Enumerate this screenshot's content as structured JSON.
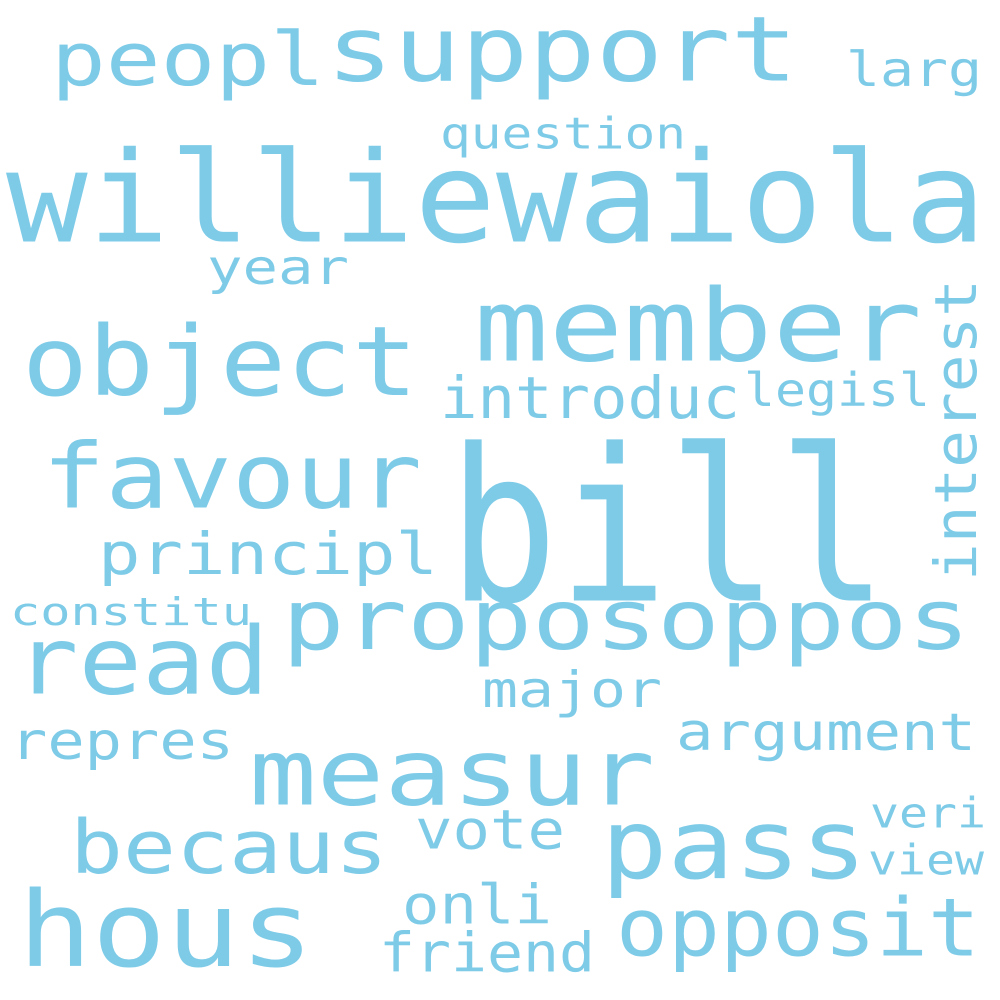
{
  "color": "#7ecbe8",
  "words": [
    "bill",
    "williewaiola",
    "member",
    "object",
    "support",
    "favour",
    "proposoppos",
    "read",
    "measur",
    "pass",
    "hous",
    "opposit",
    "becaus",
    "peopl",
    "interest",
    "introduc",
    "principl",
    "argument",
    "question",
    "year",
    "legisl",
    "larg",
    "major",
    "repres",
    "constitu",
    "vote",
    "onli",
    "friend",
    "veri",
    "view"
  ]
}
